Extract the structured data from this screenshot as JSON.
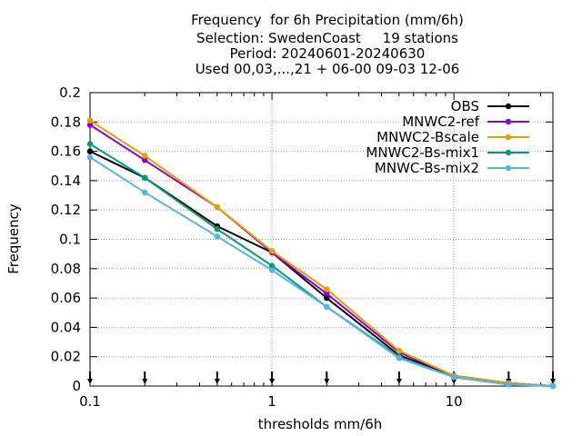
{
  "chart_data": {
    "type": "line",
    "title_lines": [
      "Frequency  for 6h Precipitation (mm/6h)",
      "Selection: SwedenCoast     19 stations",
      "Period: 20240601-20240630",
      "Used 00,03,...,21 + 06-00 09-03 12-06"
    ],
    "xlabel": "thresholds mm/6h",
    "ylabel": "Frequency",
    "x_scale": "log",
    "xlim": [
      0.1,
      35
    ],
    "ylim": [
      0,
      0.2
    ],
    "x_tick_labels": [
      "0.1",
      "1",
      "10"
    ],
    "y_tick_labels": [
      "0",
      "0.02",
      "0.04",
      "0.06",
      "0.08",
      "0.1",
      "0.12",
      "0.14",
      "0.16",
      "0.18",
      "0.2"
    ],
    "grid": true,
    "legend_position": "top-right",
    "x": [
      0.1,
      0.2,
      0.5,
      1,
      2,
      5,
      10,
      20,
      35
    ],
    "series": [
      {
        "name": "OBS",
        "color": "#000000",
        "values": [
          0.16,
          0.142,
          0.109,
          0.091,
          0.06,
          0.021,
          0.007,
          0.002,
          0.0
        ]
      },
      {
        "name": "MNWC2-ref",
        "color": "#9400d3",
        "values": [
          0.178,
          0.154,
          0.122,
          0.091,
          0.063,
          0.023,
          0.007,
          0.002,
          0.0
        ]
      },
      {
        "name": "MNWC2-Bscale",
        "color": "#e69f00",
        "values": [
          0.181,
          0.157,
          0.122,
          0.092,
          0.066,
          0.024,
          0.007,
          0.002,
          0.0
        ]
      },
      {
        "name": "MNWC2-Bs-mix1",
        "color": "#009e73",
        "values": [
          0.165,
          0.142,
          0.107,
          0.082,
          0.054,
          0.02,
          0.006,
          0.001,
          0.0
        ]
      },
      {
        "name": "MNWC-Bs-mix2",
        "color": "#56b4e9",
        "values": [
          0.156,
          0.132,
          0.102,
          0.079,
          0.054,
          0.019,
          0.006,
          0.001,
          0.0
        ]
      }
    ],
    "threshold_markers_x": [
      0.1,
      0.2,
      0.5,
      1,
      2,
      5,
      10,
      20,
      35
    ]
  }
}
